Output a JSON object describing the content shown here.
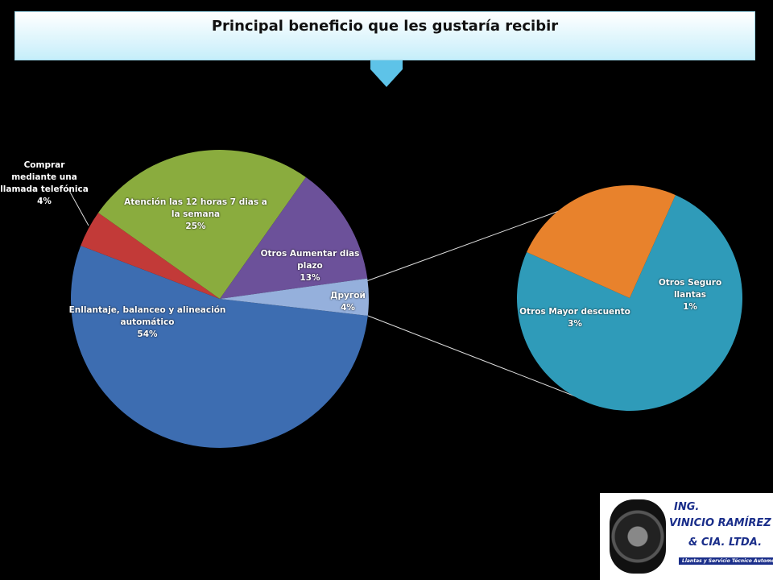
{
  "chart_data": {
    "type": "pie-of-pie",
    "title": "Principal beneficio que les gustaría recibir",
    "categories": [
      "Enllantaje, balanceo y alineación automático",
      "Comprar mediante una llamada telefónica",
      "Atención las 12 horas 7 dias a la semana",
      "Otros Aumentar dias plazo",
      "Другой"
    ],
    "values": [
      54,
      4,
      25,
      13,
      4
    ],
    "value_labels": [
      "54%",
      "4%",
      "25%",
      "13%",
      "4%"
    ],
    "colors": [
      "#3d6db1",
      "#c23a38",
      "#8aac3e",
      "#6c519a",
      "#95b0dc"
    ],
    "secondary": {
      "categories": [
        "Otros Mayor descuento",
        "Otros Seguro llantas"
      ],
      "values": [
        3,
        1
      ],
      "value_labels": [
        "3%",
        "1%"
      ],
      "colors": [
        "#2f9bb9",
        "#e8822c"
      ]
    }
  },
  "logo": {
    "line1": "ING.",
    "line2": "VINICIO RAMÍREZ",
    "line3": "& CIA. LTDA.",
    "line4": "Llantas y Servicio Técnico Automotriz"
  }
}
